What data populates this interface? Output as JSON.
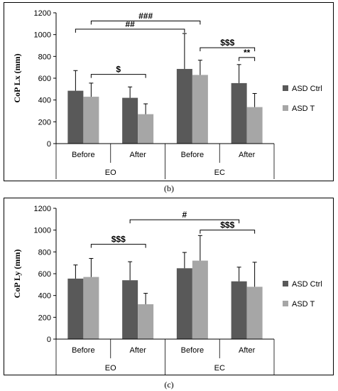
{
  "colors": {
    "ctrl": "#595959",
    "t": "#a6a6a6",
    "axis": "#000000",
    "grid": "#000000"
  },
  "chart_data": [
    {
      "type": "bar",
      "panel_label": "(b)",
      "ylabel": "CoP Lx (mm)",
      "ylim": [
        0,
        1200
      ],
      "yticks": [
        "0",
        "200",
        "400",
        "600",
        "800",
        "1000",
        "1200"
      ],
      "categories": [
        "Before",
        "After",
        "Before",
        "After"
      ],
      "groups": [
        "EO",
        "EC"
      ],
      "series": [
        {
          "name": "ASD Ctrl",
          "values": [
            485,
            420,
            685,
            555
          ],
          "errors": [
            185,
            100,
            325,
            170
          ]
        },
        {
          "name": "ASD T",
          "values": [
            430,
            270,
            630,
            335
          ],
          "errors": [
            125,
            95,
            135,
            125
          ]
        }
      ],
      "annotations": [
        {
          "label": "##",
          "from": [
            0,
            0
          ],
          "to": [
            2,
            0
          ],
          "y": 1050
        },
        {
          "label": "###",
          "from": [
            0,
            1
          ],
          "to": [
            2,
            1
          ],
          "y": 1125
        },
        {
          "label": "$",
          "from": [
            0,
            1
          ],
          "to": [
            1,
            1
          ],
          "y": 635
        },
        {
          "label": "$$$",
          "from": [
            2,
            1
          ],
          "to": [
            3,
            1
          ],
          "y": 880
        },
        {
          "label": "**",
          "from": [
            3,
            0
          ],
          "to": [
            3,
            1
          ],
          "y": 790
        }
      ],
      "legend": "right"
    },
    {
      "type": "bar",
      "panel_label": "(c)",
      "ylabel": "CoP Ly (mm)",
      "ylim": [
        0,
        1200
      ],
      "yticks": [
        "0",
        "200",
        "400",
        "600",
        "800",
        "1000",
        "1200"
      ],
      "categories": [
        "Before",
        "After",
        "Before",
        "After"
      ],
      "groups": [
        "EO",
        "EC"
      ],
      "series": [
        {
          "name": "ASD Ctrl",
          "values": [
            555,
            540,
            650,
            530
          ],
          "errors": [
            125,
            170,
            145,
            130
          ]
        },
        {
          "name": "ASD T",
          "values": [
            570,
            320,
            720,
            480
          ],
          "errors": [
            170,
            100,
            230,
            225
          ]
        }
      ],
      "annotations": [
        {
          "label": "$$$",
          "from": [
            0,
            1
          ],
          "to": [
            1,
            1
          ],
          "y": 870
        },
        {
          "label": "#",
          "from": [
            1,
            0
          ],
          "to": [
            3,
            0
          ],
          "y": 1095
        },
        {
          "label": "$$$",
          "from": [
            2,
            1
          ],
          "to": [
            3,
            1
          ],
          "y": 1000
        }
      ],
      "legend": "right"
    }
  ]
}
